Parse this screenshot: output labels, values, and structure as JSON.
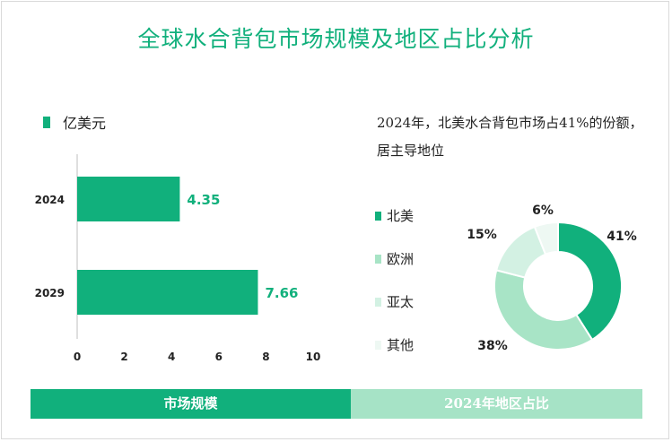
{
  "title": "全球水合背包市场规模及地区占比分析",
  "colors": {
    "accent": "#11b07c",
    "north_america": "#11b07c",
    "europe": "#a8e4c6",
    "asia_pacific": "#d3f1e3",
    "other": "#eef8f3"
  },
  "legend_unit": "亿美元",
  "pie_heading": "2024年，北美水合背包市场占41%的份额，居主导地位",
  "tabs": {
    "left": "市场规模",
    "right": "2024年地区占比"
  },
  "chart_data": [
    {
      "type": "bar",
      "orientation": "horizontal",
      "categories": [
        "2024",
        "2029"
      ],
      "values": [
        4.35,
        7.66
      ],
      "value_labels": [
        "4.35",
        "7.66"
      ],
      "series_name": "亿美元",
      "xlim": [
        0,
        10
      ],
      "xticks": [
        0,
        2,
        4,
        6,
        8,
        10
      ],
      "xlabel": "",
      "ylabel": "",
      "grid": false,
      "legend_position": "top-left"
    },
    {
      "type": "pie",
      "style": "donut",
      "title": "2024年，北美水合背包市场占41%的份额，居主导地位",
      "labels": [
        "北美",
        "欧洲",
        "亚太",
        "其他"
      ],
      "values": [
        41,
        38,
        15,
        6
      ],
      "value_labels": [
        "41%",
        "38%",
        "15%",
        "6%"
      ],
      "legend_position": "left"
    }
  ]
}
